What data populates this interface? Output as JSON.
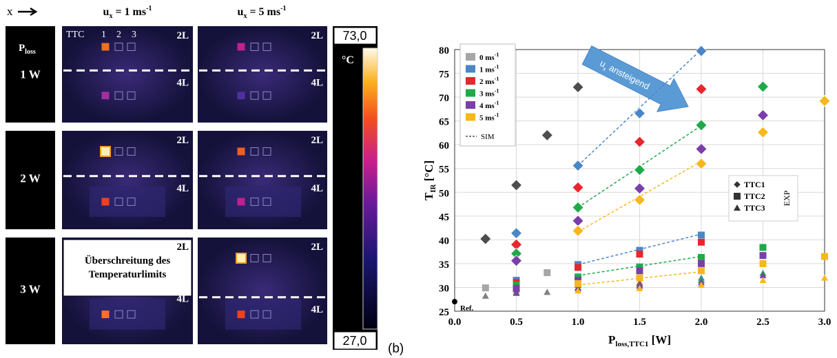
{
  "thermal_figure": {
    "direction_label": "x",
    "columns": [
      {
        "symbol": "u",
        "subscript": "x",
        "text": " = 1 ms",
        "superscript": "-1"
      },
      {
        "symbol": "u",
        "subscript": "x",
        "text": " = 5 ms",
        "superscript": "-1"
      }
    ],
    "row_header": {
      "symbol": "P",
      "subscript": "loss"
    },
    "rows": [
      "1 W",
      "2 W",
      "3 W"
    ],
    "sensor_labels": [
      "TTC",
      "1",
      "2",
      "3"
    ],
    "layer_labels": [
      "2L",
      "4L"
    ],
    "exceeded_note": [
      "Überschreitung des",
      "Temperaturlimits"
    ],
    "colorbar": {
      "max": "73,0",
      "min": "27,0",
      "unit": "°C"
    },
    "panel_label": "(b)"
  },
  "chart_data": {
    "type": "scatter",
    "x_label": {
      "symbol": "P",
      "subscript": "loss,TTC1",
      "text": " [W]"
    },
    "y_label": {
      "symbol": "T",
      "subscript": "IR",
      "text": " [°C]"
    },
    "xlim": [
      0,
      3
    ],
    "xticks": [
      {
        "value": 0,
        "label": "0.0"
      },
      {
        "value": 0.5,
        "label": "0.5"
      },
      {
        "value": 1,
        "label": "1.0"
      },
      {
        "value": 1.5,
        "label": "1.5"
      },
      {
        "value": 2,
        "label": "2.0"
      },
      {
        "value": 2.5,
        "label": "2.5"
      },
      {
        "value": 3,
        "label": "3.0"
      }
    ],
    "ylim": [
      25,
      80
    ],
    "yticks": [
      25,
      30,
      35,
      40,
      45,
      50,
      55,
      60,
      65,
      70,
      75,
      80
    ],
    "grid": true,
    "markers": [
      "TTC1",
      "TTC2",
      "TTC3"
    ],
    "marker_group_label": "EXP",
    "sim_label": "SIM",
    "series": [
      {
        "name": {
          "text": "0 ms",
          "superscript": "-1"
        },
        "color": "#a6a6a6",
        "sensors": [
          {
            "color": "#4d4d4d",
            "x": [
              0.25,
              0.5,
              0.75,
              1.0
            ],
            "values": [
              40.2,
              51.5,
              62,
              72.1
            ]
          },
          {
            "color": "#a6a6a6",
            "x": [
              0.25,
              0.75
            ],
            "values": [
              29.9,
              33.1
            ]
          },
          {
            "color": "#808080",
            "x": [
              0.25,
              0.75
            ],
            "values": [
              28.2,
              29
            ]
          }
        ]
      },
      {
        "name": {
          "text": "1 ms",
          "superscript": "-1"
        },
        "color": "#4a86c8",
        "sensors": [
          {
            "x": [
              0.5,
              1.0,
              1.5,
              2.0
            ],
            "values": [
              41.4,
              55.6,
              66.6,
              79.7
            ]
          },
          {
            "x": [
              0.5,
              1.0,
              1.5,
              2.0
            ],
            "values": [
              31.5,
              34.8,
              37.8,
              41
            ]
          },
          {
            "x": [
              0.5,
              1.0,
              1.5,
              2.0
            ],
            "values": [
              30,
              31,
              31,
              32
            ]
          }
        ]
      },
      {
        "name": {
          "text": "2 ms",
          "superscript": "-1"
        },
        "color": "#e8262e",
        "sensors": [
          {
            "x": [
              0.5,
              1.0,
              1.5,
              2.0
            ],
            "values": [
              39,
              51,
              60.6,
              71.7
            ]
          },
          {
            "x": [
              0.5,
              1.0,
              1.5,
              2.0
            ],
            "values": [
              31,
              34.2,
              37,
              39.5
            ]
          },
          {
            "x": [
              0.5,
              1.0,
              1.5,
              2.0
            ],
            "values": [
              29.5,
              30.5,
              30.8,
              31.5
            ]
          }
        ]
      },
      {
        "name": {
          "text": "3 ms",
          "superscript": "-1"
        },
        "color": "#1faa4a",
        "sensors": [
          {
            "x": [
              0.5,
              1.0,
              1.5,
              2.0,
              2.5
            ],
            "values": [
              37.1,
              46.8,
              54.7,
              64.1,
              72.2
            ]
          },
          {
            "x": [
              0.5,
              1.0,
              1.5,
              2.0,
              2.5
            ],
            "values": [
              30.5,
              32.2,
              34.3,
              36.3,
              38.4
            ]
          },
          {
            "x": [
              0.5,
              1.0,
              1.5,
              2.0,
              2.5
            ],
            "values": [
              29,
              30,
              30.5,
              31.5,
              33
            ]
          }
        ]
      },
      {
        "name": {
          "text": "4 ms",
          "superscript": "-1"
        },
        "color": "#7a3fa8",
        "sensors": [
          {
            "x": [
              0.5,
              1.0,
              1.5,
              2.0,
              2.5
            ],
            "values": [
              35.6,
              44,
              50.8,
              59.1,
              66.2
            ]
          },
          {
            "x": [
              0.5,
              1.0,
              1.5,
              2.0,
              2.5
            ],
            "values": [
              29.8,
              31.5,
              33.5,
              35,
              36.7
            ]
          },
          {
            "x": [
              0.5,
              1.0,
              1.5,
              2.0,
              2.5
            ],
            "values": [
              28.8,
              29.8,
              30.3,
              31,
              32.5
            ]
          }
        ]
      },
      {
        "name": {
          "text": "5 ms",
          "superscript": "-1"
        },
        "color": "#f7b71d",
        "sensors": [
          {
            "x": [
              1.0,
              1.5,
              2.0,
              2.5,
              3.0
            ],
            "values": [
              41.9,
              48.4,
              56,
              62.6,
              69.2
            ]
          },
          {
            "x": [
              1.0,
              1.5,
              2.0,
              2.5,
              3.0
            ],
            "values": [
              30.8,
              32,
              33.5,
              35,
              36.5
            ]
          },
          {
            "x": [
              1.0,
              1.5,
              2.0,
              2.5,
              3.0
            ],
            "values": [
              29.3,
              29.8,
              30.5,
              31.5,
              32
            ]
          }
        ]
      }
    ],
    "sim_lines": [
      {
        "color": "#4a86c8",
        "x": [
          1.0,
          2.0
        ],
        "values": [
          55.6,
          80
        ]
      },
      {
        "color": "#4a86c8",
        "x": [
          1.0,
          2.0
        ],
        "values": [
          34.8,
          41.2
        ]
      },
      {
        "color": "#1faa4a",
        "x": [
          1.0,
          2.0
        ],
        "values": [
          46.8,
          64
        ]
      },
      {
        "color": "#1faa4a",
        "x": [
          1.0,
          2.0
        ],
        "values": [
          32.5,
          36.5
        ]
      },
      {
        "color": "#f7b71d",
        "x": [
          1.0,
          2.0
        ],
        "values": [
          41.7,
          56.5
        ]
      },
      {
        "color": "#f7b71d",
        "x": [
          1.0,
          2.0
        ],
        "values": [
          30.5,
          33.3
        ]
      }
    ],
    "ref_point": {
      "label": "Ref.",
      "x": 0,
      "value": 27
    },
    "trend_annotation": {
      "symbol": "u",
      "subscript": "x",
      "text": " ansteigend"
    }
  }
}
